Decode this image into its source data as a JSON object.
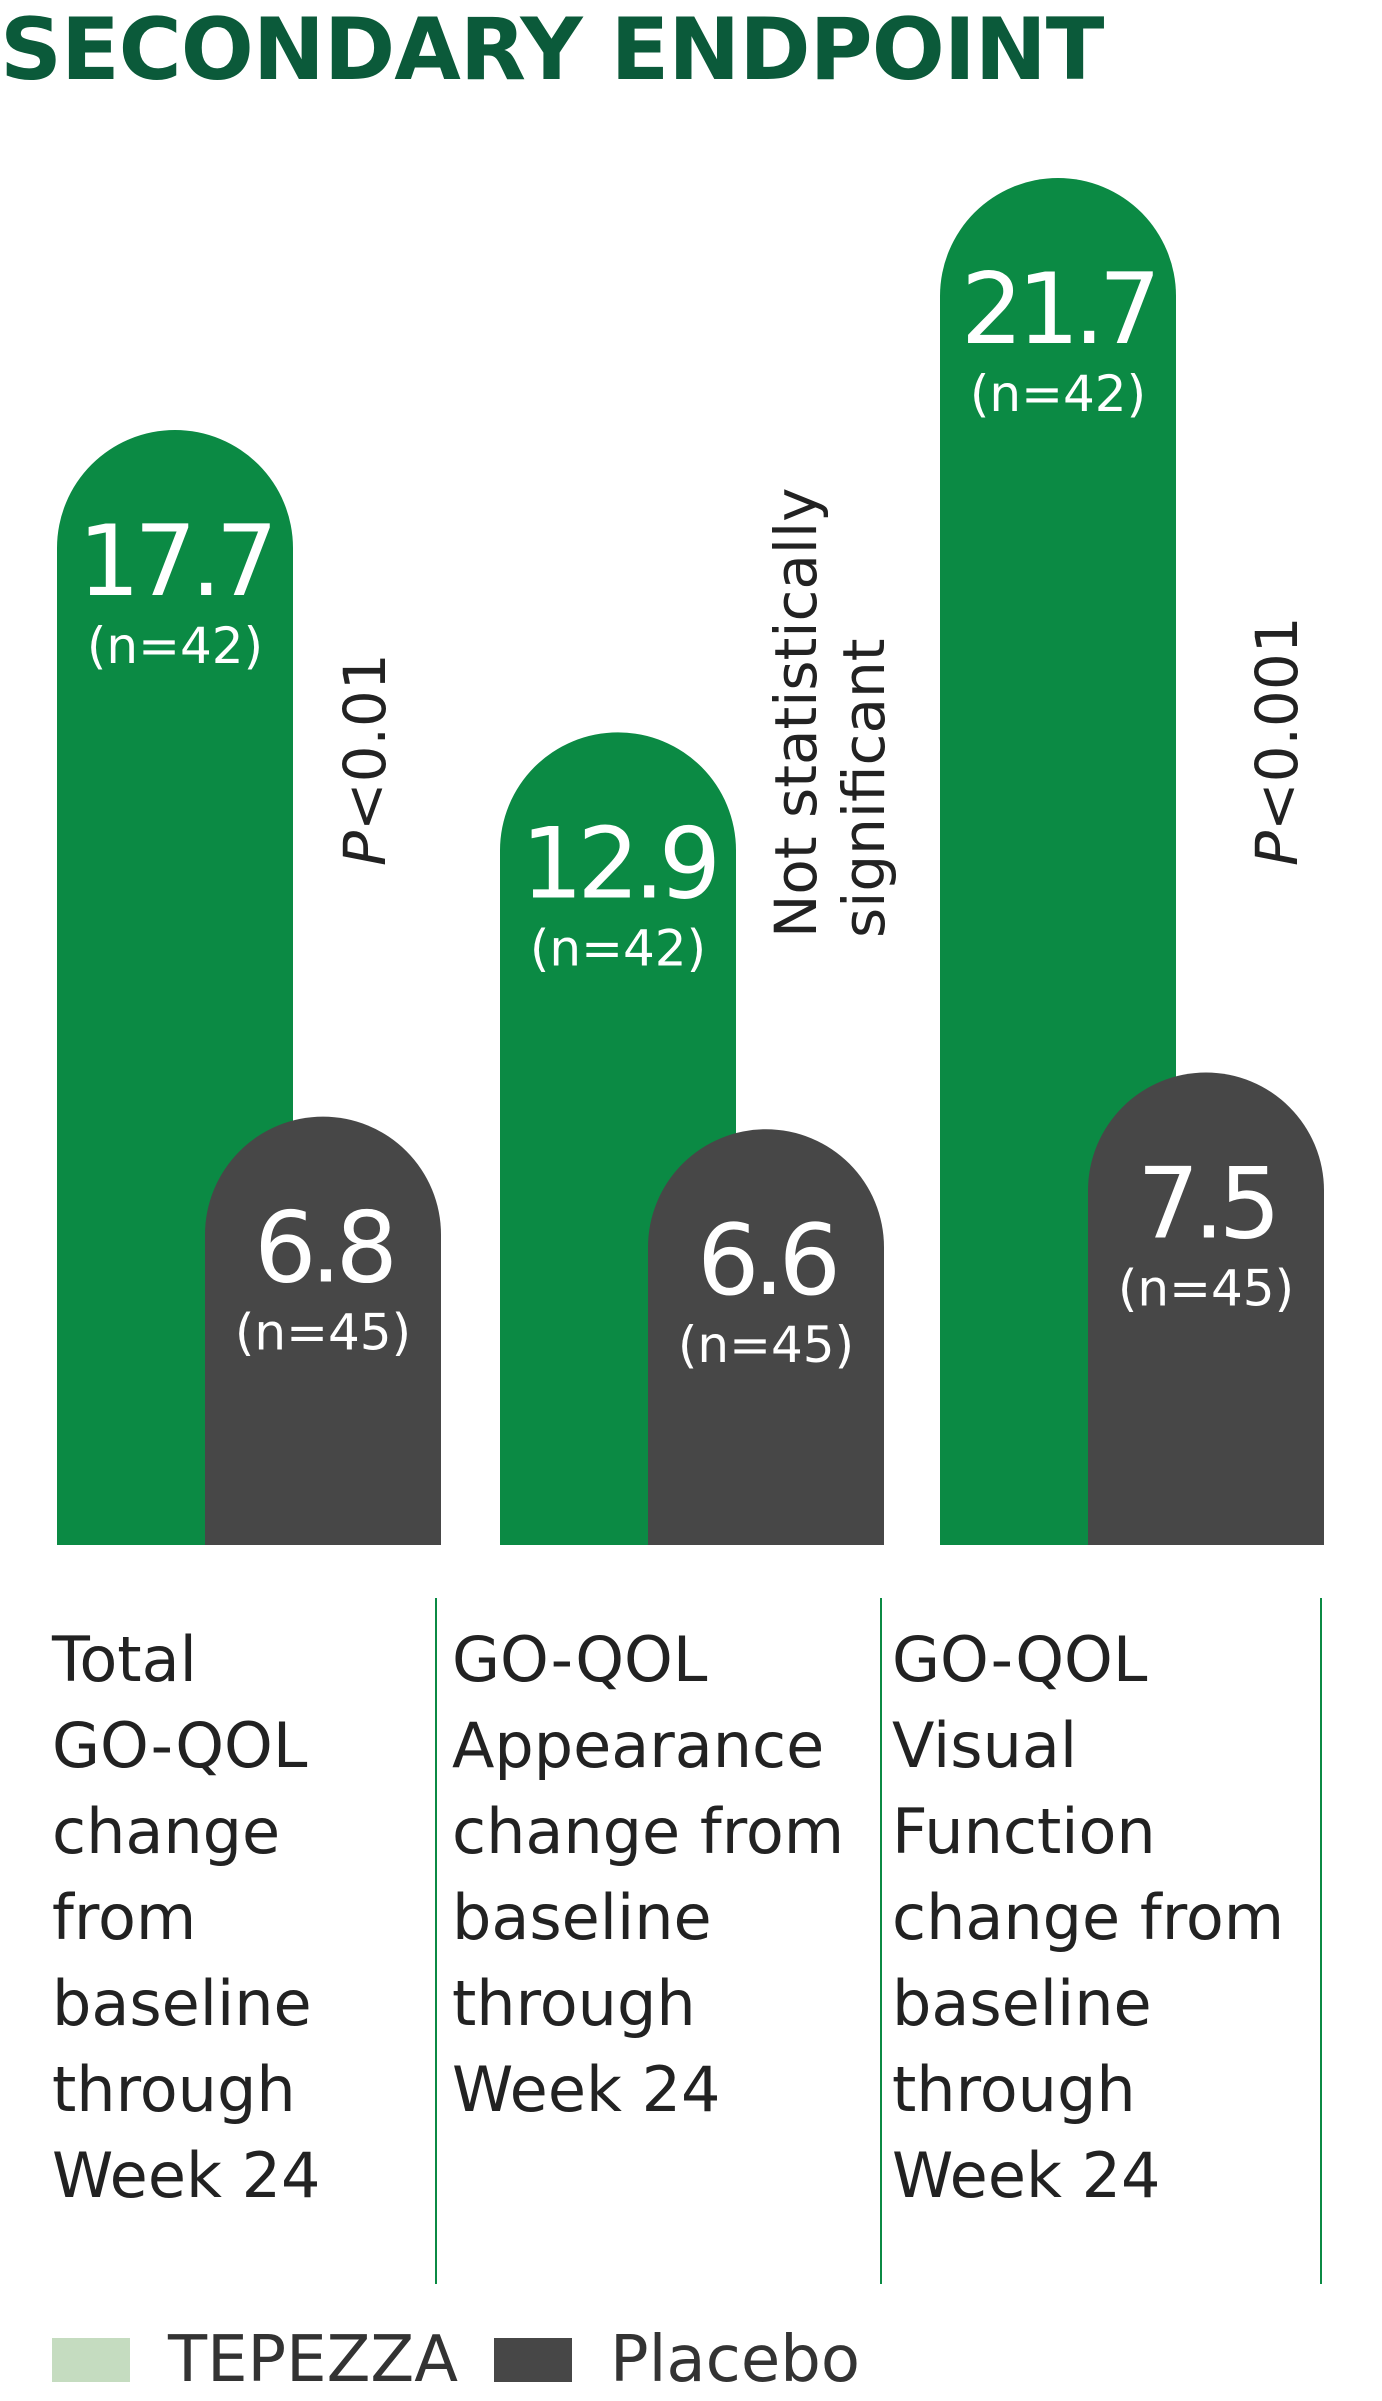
{
  "title": "SECONDARY ENDPOINT",
  "colors": {
    "tepezza": "#0b8a44",
    "placebo": "#474747",
    "title": "#0b5a3a",
    "legend_tepezza": "#c5dcc0",
    "divider": "#0b8a44"
  },
  "chart_data": {
    "type": "bar",
    "categories": [
      "Total\nGO-QOL\nchange\nfrom\nbaseline\nthrough\nWeek 24",
      "GO-QOL\nAppearance\nchange from\nbaseline\nthrough\nWeek 24",
      "GO-QOL\nVisual\nFunction\nchange from\nbaseline\nthrough\nWeek 24"
    ],
    "series": [
      {
        "name": "TEPEZZA",
        "values": [
          17.7,
          12.9,
          21.7
        ],
        "labels": [
          "17.7",
          "12.9",
          "21.7"
        ],
        "n": [
          "(n=42)",
          "(n=42)",
          "(n=42)"
        ]
      },
      {
        "name": "Placebo",
        "values": [
          6.8,
          6.6,
          7.5
        ],
        "labels": [
          "6.8",
          "6.6",
          "7.5"
        ],
        "n": [
          "(n=45)",
          "(n=45)",
          "(n=45)"
        ]
      }
    ],
    "significance": [
      {
        "prefix": "P",
        "rest": "<0.01"
      },
      {
        "lines": [
          "Not statistically",
          "significant"
        ]
      },
      {
        "prefix": "P",
        "rest": "<0.001"
      }
    ],
    "ylim": [
      0,
      25
    ],
    "grid": false,
    "legend_position": "bottom-left"
  },
  "legend": {
    "tepezza_label": "TEPEZZA",
    "placebo_label": "Placebo"
  }
}
